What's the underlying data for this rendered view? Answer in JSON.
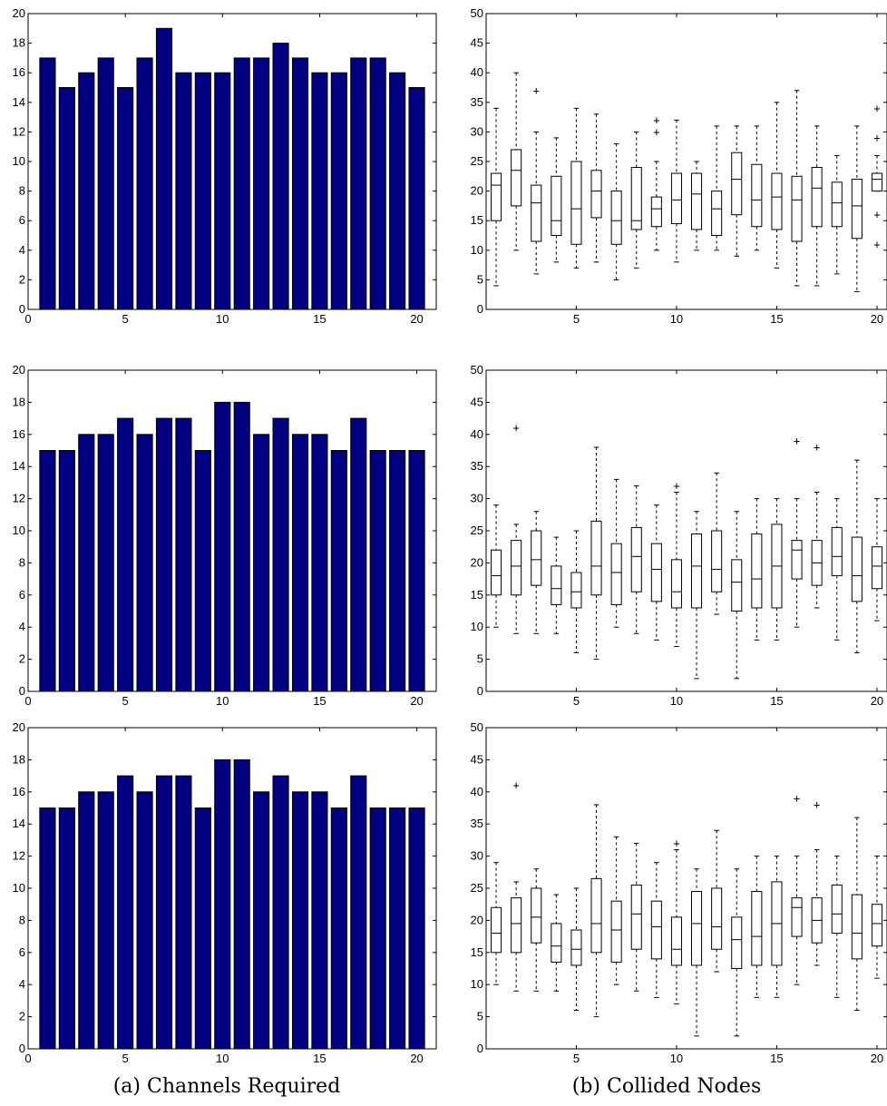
{
  "captions": {
    "left": "(a) Channels Required",
    "right": "(b) Collided Nodes"
  },
  "colors": {
    "bar_fill": "#000080"
  },
  "chart_data": [
    {
      "type": "bar",
      "panel": "channels-row-1",
      "x": [
        1,
        2,
        3,
        4,
        5,
        6,
        7,
        8,
        9,
        10,
        11,
        12,
        13,
        14,
        15,
        16,
        17,
        18,
        19,
        20
      ],
      "values": [
        17,
        15,
        16,
        17,
        15,
        17,
        19,
        16,
        16,
        16,
        17,
        17,
        18,
        17,
        16,
        16,
        17,
        17,
        16,
        15
      ],
      "xlim": [
        0,
        21
      ],
      "ylim": [
        0,
        20
      ],
      "xticks": [
        0,
        5,
        10,
        15,
        20
      ],
      "yticks": [
        0,
        2,
        4,
        6,
        8,
        10,
        12,
        14,
        16,
        18,
        20
      ]
    },
    {
      "type": "bar",
      "panel": "channels-row-2",
      "x": [
        1,
        2,
        3,
        4,
        5,
        6,
        7,
        8,
        9,
        10,
        11,
        12,
        13,
        14,
        15,
        16,
        17,
        18,
        19,
        20
      ],
      "values": [
        15,
        15,
        16,
        16,
        17,
        16,
        17,
        17,
        15,
        18,
        18,
        16,
        17,
        16,
        16,
        15,
        17,
        15,
        15,
        15
      ],
      "xlim": [
        0,
        21
      ],
      "ylim": [
        0,
        20
      ],
      "xticks": [
        0,
        5,
        10,
        15,
        20
      ],
      "yticks": [
        0,
        2,
        4,
        6,
        8,
        10,
        12,
        14,
        16,
        18,
        20
      ]
    },
    {
      "type": "bar",
      "panel": "channels-row-3",
      "x": [
        1,
        2,
        3,
        4,
        5,
        6,
        7,
        8,
        9,
        10,
        11,
        12,
        13,
        14,
        15,
        16,
        17,
        18,
        19,
        20
      ],
      "values": [
        15,
        15,
        16,
        16,
        17,
        16,
        17,
        17,
        15,
        18,
        18,
        16,
        17,
        16,
        16,
        15,
        17,
        15,
        15,
        15
      ],
      "xlim": [
        0,
        21
      ],
      "ylim": [
        0,
        20
      ],
      "xticks": [
        0,
        5,
        10,
        15,
        20
      ],
      "yticks": [
        0,
        2,
        4,
        6,
        8,
        10,
        12,
        14,
        16,
        18,
        20
      ]
    },
    {
      "type": "boxplot",
      "panel": "collided-row-1",
      "x": [
        1,
        2,
        3,
        4,
        5,
        6,
        7,
        8,
        9,
        10,
        11,
        12,
        13,
        14,
        15,
        16,
        17,
        18,
        19,
        20
      ],
      "boxes": [
        {
          "whislo": 4,
          "q1": 15,
          "med": 21,
          "q3": 23,
          "whishi": 34,
          "outliers": []
        },
        {
          "whislo": 10,
          "q1": 17.5,
          "med": 23.5,
          "q3": 27,
          "whishi": 40,
          "outliers": []
        },
        {
          "whislo": 6,
          "q1": 11.5,
          "med": 18,
          "q3": 21,
          "whishi": 30,
          "outliers": [
            37
          ]
        },
        {
          "whislo": 8,
          "q1": 12.5,
          "med": 15,
          "q3": 22.5,
          "whishi": 29,
          "outliers": []
        },
        {
          "whislo": 7,
          "q1": 11,
          "med": 17,
          "q3": 25,
          "whishi": 34,
          "outliers": []
        },
        {
          "whislo": 8,
          "q1": 15.5,
          "med": 20,
          "q3": 23.5,
          "whishi": 33,
          "outliers": []
        },
        {
          "whislo": 5,
          "q1": 11,
          "med": 15,
          "q3": 20,
          "whishi": 28,
          "outliers": []
        },
        {
          "whislo": 7,
          "q1": 13.5,
          "med": 15,
          "q3": 24,
          "whishi": 30,
          "outliers": []
        },
        {
          "whislo": 10,
          "q1": 14,
          "med": 17,
          "q3": 19,
          "whishi": 25,
          "outliers": [
            30,
            32
          ]
        },
        {
          "whislo": 8,
          "q1": 14.5,
          "med": 18.5,
          "q3": 23,
          "whishi": 32,
          "outliers": []
        },
        {
          "whislo": 10,
          "q1": 13.5,
          "med": 19.5,
          "q3": 23,
          "whishi": 25,
          "outliers": []
        },
        {
          "whislo": 10,
          "q1": 12.5,
          "med": 17,
          "q3": 20,
          "whishi": 31,
          "outliers": []
        },
        {
          "whislo": 9,
          "q1": 16,
          "med": 22,
          "q3": 26.5,
          "whishi": 31,
          "outliers": []
        },
        {
          "whislo": 10,
          "q1": 14,
          "med": 18.5,
          "q3": 24.5,
          "whishi": 31,
          "outliers": []
        },
        {
          "whislo": 7,
          "q1": 13.5,
          "med": 19,
          "q3": 23,
          "whishi": 35,
          "outliers": []
        },
        {
          "whislo": 4,
          "q1": 11.5,
          "med": 18.5,
          "q3": 22.5,
          "whishi": 37,
          "outliers": []
        },
        {
          "whislo": 4,
          "q1": 14,
          "med": 20.5,
          "q3": 24,
          "whishi": 31,
          "outliers": []
        },
        {
          "whislo": 6,
          "q1": 14,
          "med": 18,
          "q3": 21.5,
          "whishi": 26,
          "outliers": []
        },
        {
          "whislo": 3,
          "q1": 12,
          "med": 17.5,
          "q3": 22,
          "whishi": 31,
          "outliers": []
        },
        {
          "whislo": 20,
          "q1": 20,
          "med": 22,
          "q3": 23,
          "whishi": 26,
          "outliers": [
            11,
            16,
            29,
            34
          ]
        }
      ],
      "xlim": [
        0.5,
        20.5
      ],
      "ylim": [
        0,
        50
      ],
      "xticks": [
        5,
        10,
        15,
        20
      ],
      "yticks": [
        0,
        5,
        10,
        15,
        20,
        25,
        30,
        35,
        40,
        45,
        50
      ]
    },
    {
      "type": "boxplot",
      "panel": "collided-row-2",
      "x": [
        1,
        2,
        3,
        4,
        5,
        6,
        7,
        8,
        9,
        10,
        11,
        12,
        13,
        14,
        15,
        16,
        17,
        18,
        19,
        20
      ],
      "boxes": [
        {
          "whislo": 10,
          "q1": 15,
          "med": 18,
          "q3": 22,
          "whishi": 29,
          "outliers": []
        },
        {
          "whislo": 9,
          "q1": 15,
          "med": 19.5,
          "q3": 23.5,
          "whishi": 26,
          "outliers": [
            41
          ]
        },
        {
          "whislo": 9,
          "q1": 16.5,
          "med": 20.5,
          "q3": 25,
          "whishi": 28,
          "outliers": []
        },
        {
          "whislo": 9,
          "q1": 13.5,
          "med": 16,
          "q3": 19.5,
          "whishi": 24,
          "outliers": []
        },
        {
          "whislo": 6,
          "q1": 13,
          "med": 15.5,
          "q3": 18.5,
          "whishi": 25,
          "outliers": []
        },
        {
          "whislo": 5,
          "q1": 15,
          "med": 19.5,
          "q3": 26.5,
          "whishi": 38,
          "outliers": []
        },
        {
          "whislo": 10,
          "q1": 13.5,
          "med": 18.5,
          "q3": 23,
          "whishi": 33,
          "outliers": []
        },
        {
          "whislo": 9,
          "q1": 15.5,
          "med": 21,
          "q3": 25.5,
          "whishi": 32,
          "outliers": []
        },
        {
          "whislo": 8,
          "q1": 14,
          "med": 19,
          "q3": 23,
          "whishi": 29,
          "outliers": []
        },
        {
          "whislo": 7,
          "q1": 13,
          "med": 15.5,
          "q3": 20.5,
          "whishi": 31,
          "outliers": [
            32
          ]
        },
        {
          "whislo": 2,
          "q1": 13,
          "med": 19.5,
          "q3": 24.5,
          "whishi": 28,
          "outliers": []
        },
        {
          "whislo": 12,
          "q1": 15.5,
          "med": 19,
          "q3": 25,
          "whishi": 34,
          "outliers": []
        },
        {
          "whislo": 2,
          "q1": 12.5,
          "med": 17,
          "q3": 20.5,
          "whishi": 28,
          "outliers": []
        },
        {
          "whislo": 8,
          "q1": 13,
          "med": 17.5,
          "q3": 24.5,
          "whishi": 30,
          "outliers": []
        },
        {
          "whislo": 8,
          "q1": 13,
          "med": 19.5,
          "q3": 26,
          "whishi": 30,
          "outliers": []
        },
        {
          "whislo": 10,
          "q1": 17.5,
          "med": 22,
          "q3": 23.5,
          "whishi": 30,
          "outliers": [
            39
          ]
        },
        {
          "whislo": 13,
          "q1": 16.5,
          "med": 20,
          "q3": 23.5,
          "whishi": 31,
          "outliers": [
            38
          ]
        },
        {
          "whislo": 8,
          "q1": 18,
          "med": 21,
          "q3": 25.5,
          "whishi": 30,
          "outliers": []
        },
        {
          "whislo": 6,
          "q1": 14,
          "med": 18,
          "q3": 24,
          "whishi": 36,
          "outliers": []
        },
        {
          "whislo": 11,
          "q1": 16,
          "med": 19.5,
          "q3": 22.5,
          "whishi": 30,
          "outliers": []
        }
      ],
      "xlim": [
        0.5,
        20.5
      ],
      "ylim": [
        0,
        50
      ],
      "xticks": [
        5,
        10,
        15,
        20
      ],
      "yticks": [
        0,
        5,
        10,
        15,
        20,
        25,
        30,
        35,
        40,
        45,
        50
      ]
    },
    {
      "type": "boxplot",
      "panel": "collided-row-3",
      "x": [
        1,
        2,
        3,
        4,
        5,
        6,
        7,
        8,
        9,
        10,
        11,
        12,
        13,
        14,
        15,
        16,
        17,
        18,
        19,
        20
      ],
      "boxes": [
        {
          "whislo": 10,
          "q1": 15,
          "med": 18,
          "q3": 22,
          "whishi": 29,
          "outliers": []
        },
        {
          "whislo": 9,
          "q1": 15,
          "med": 19.5,
          "q3": 23.5,
          "whishi": 26,
          "outliers": [
            41
          ]
        },
        {
          "whislo": 9,
          "q1": 16.5,
          "med": 20.5,
          "q3": 25,
          "whishi": 28,
          "outliers": []
        },
        {
          "whislo": 9,
          "q1": 13.5,
          "med": 16,
          "q3": 19.5,
          "whishi": 24,
          "outliers": []
        },
        {
          "whislo": 6,
          "q1": 13,
          "med": 15.5,
          "q3": 18.5,
          "whishi": 25,
          "outliers": []
        },
        {
          "whislo": 5,
          "q1": 15,
          "med": 19.5,
          "q3": 26.5,
          "whishi": 38,
          "outliers": []
        },
        {
          "whislo": 10,
          "q1": 13.5,
          "med": 18.5,
          "q3": 23,
          "whishi": 33,
          "outliers": []
        },
        {
          "whislo": 9,
          "q1": 15.5,
          "med": 21,
          "q3": 25.5,
          "whishi": 32,
          "outliers": []
        },
        {
          "whislo": 8,
          "q1": 14,
          "med": 19,
          "q3": 23,
          "whishi": 29,
          "outliers": []
        },
        {
          "whislo": 7,
          "q1": 13,
          "med": 15.5,
          "q3": 20.5,
          "whishi": 31,
          "outliers": [
            32
          ]
        },
        {
          "whislo": 2,
          "q1": 13,
          "med": 19.5,
          "q3": 24.5,
          "whishi": 28,
          "outliers": []
        },
        {
          "whislo": 12,
          "q1": 15.5,
          "med": 19,
          "q3": 25,
          "whishi": 34,
          "outliers": []
        },
        {
          "whislo": 2,
          "q1": 12.5,
          "med": 17,
          "q3": 20.5,
          "whishi": 28,
          "outliers": []
        },
        {
          "whislo": 8,
          "q1": 13,
          "med": 17.5,
          "q3": 24.5,
          "whishi": 30,
          "outliers": []
        },
        {
          "whislo": 8,
          "q1": 13,
          "med": 19.5,
          "q3": 26,
          "whishi": 30,
          "outliers": []
        },
        {
          "whislo": 10,
          "q1": 17.5,
          "med": 22,
          "q3": 23.5,
          "whishi": 30,
          "outliers": [
            39
          ]
        },
        {
          "whislo": 13,
          "q1": 16.5,
          "med": 20,
          "q3": 23.5,
          "whishi": 31,
          "outliers": [
            38
          ]
        },
        {
          "whislo": 8,
          "q1": 18,
          "med": 21,
          "q3": 25.5,
          "whishi": 30,
          "outliers": []
        },
        {
          "whislo": 6,
          "q1": 14,
          "med": 18,
          "q3": 24,
          "whishi": 36,
          "outliers": []
        },
        {
          "whislo": 11,
          "q1": 16,
          "med": 19.5,
          "q3": 22.5,
          "whishi": 30,
          "outliers": []
        }
      ],
      "xlim": [
        0.5,
        20.5
      ],
      "ylim": [
        0,
        50
      ],
      "xticks": [
        5,
        10,
        15,
        20
      ],
      "yticks": [
        0,
        5,
        10,
        15,
        20,
        25,
        30,
        35,
        40,
        45,
        50
      ]
    }
  ]
}
